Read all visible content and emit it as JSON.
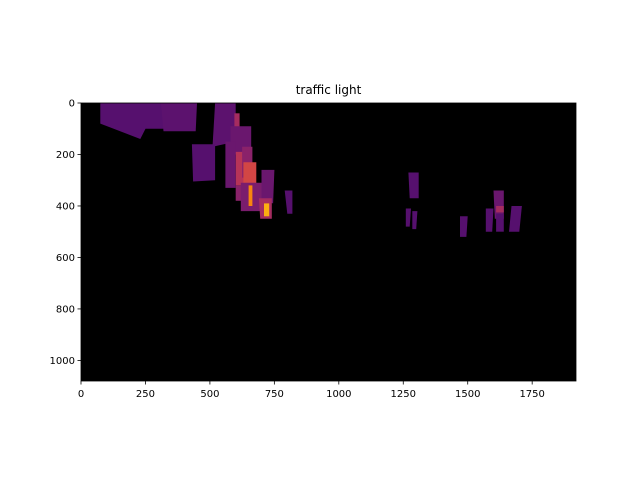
{
  "chart_data": {
    "type": "heatmap",
    "title": "traffic light",
    "xlabel": "",
    "ylabel": "",
    "xlim": [
      0,
      1920
    ],
    "ylim": [
      1080,
      0
    ],
    "x_ticks": [
      0,
      250,
      500,
      750,
      1000,
      1250,
      1500,
      1750
    ],
    "y_ticks": [
      0,
      200,
      400,
      600,
      800,
      1000
    ],
    "colormap": "inferno",
    "background_color": "#000000",
    "grid": false,
    "regions": [
      {
        "points": [
          [
            75,
            0
          ],
          [
            330,
            0
          ],
          [
            330,
            100
          ],
          [
            250,
            100
          ],
          [
            230,
            140
          ],
          [
            75,
            80
          ]
        ],
        "color": "#56106e"
      },
      {
        "points": [
          [
            310,
            0
          ],
          [
            450,
            0
          ],
          [
            445,
            110
          ],
          [
            320,
            110
          ]
        ],
        "color": "#5c126e"
      },
      {
        "points": [
          [
            520,
            0
          ],
          [
            600,
            0
          ],
          [
            600,
            150
          ],
          [
            510,
            170
          ]
        ],
        "color": "#5c126e"
      },
      {
        "points": [
          [
            595,
            40
          ],
          [
            615,
            40
          ],
          [
            615,
            105
          ],
          [
            595,
            105
          ]
        ],
        "color": "#a52c60"
      },
      {
        "points": [
          [
            580,
            90
          ],
          [
            660,
            90
          ],
          [
            660,
            200
          ],
          [
            580,
            200
          ]
        ],
        "color": "#6a176e"
      },
      {
        "points": [
          [
            600,
            190
          ],
          [
            640,
            190
          ],
          [
            640,
            320
          ],
          [
            600,
            320
          ]
        ],
        "color": "#b63458"
      },
      {
        "points": [
          [
            625,
            170
          ],
          [
            665,
            170
          ],
          [
            665,
            290
          ],
          [
            625,
            290
          ]
        ],
        "color": "#8a226a"
      },
      {
        "points": [
          [
            430,
            160
          ],
          [
            520,
            160
          ],
          [
            520,
            300
          ],
          [
            435,
            305
          ]
        ],
        "color": "#56106e"
      },
      {
        "points": [
          [
            560,
            150
          ],
          [
            600,
            150
          ],
          [
            600,
            330
          ],
          [
            560,
            330
          ]
        ],
        "color": "#6a176e"
      },
      {
        "points": [
          [
            630,
            230
          ],
          [
            680,
            230
          ],
          [
            680,
            320
          ],
          [
            630,
            320
          ]
        ],
        "color": "#d24644"
      },
      {
        "points": [
          [
            600,
            320
          ],
          [
            640,
            320
          ],
          [
            640,
            380
          ],
          [
            600,
            380
          ]
        ],
        "color": "#8a226a"
      },
      {
        "points": [
          [
            620,
            310
          ],
          [
            700,
            310
          ],
          [
            700,
            420
          ],
          [
            620,
            420
          ]
        ],
        "color": "#7a1d6d"
      },
      {
        "points": [
          [
            650,
            320
          ],
          [
            665,
            320
          ],
          [
            665,
            400
          ],
          [
            650,
            400
          ]
        ],
        "color": "#f8850f"
      },
      {
        "points": [
          [
            700,
            260
          ],
          [
            750,
            260
          ],
          [
            745,
            390
          ],
          [
            700,
            380
          ]
        ],
        "color": "#6a176e"
      },
      {
        "points": [
          [
            690,
            370
          ],
          [
            740,
            370
          ],
          [
            740,
            450
          ],
          [
            695,
            450
          ]
        ],
        "color": "#a52c60"
      },
      {
        "points": [
          [
            710,
            390
          ],
          [
            730,
            390
          ],
          [
            730,
            440
          ],
          [
            710,
            440
          ]
        ],
        "color": "#fcae12"
      },
      {
        "points": [
          [
            790,
            340
          ],
          [
            820,
            340
          ],
          [
            820,
            430
          ],
          [
            800,
            430
          ]
        ],
        "color": "#56106e"
      },
      {
        "points": [
          [
            1270,
            270
          ],
          [
            1310,
            270
          ],
          [
            1310,
            370
          ],
          [
            1275,
            370
          ]
        ],
        "color": "#56106e"
      },
      {
        "points": [
          [
            1260,
            410
          ],
          [
            1280,
            410
          ],
          [
            1275,
            480
          ],
          [
            1260,
            480
          ]
        ],
        "color": "#56106e"
      },
      {
        "points": [
          [
            1285,
            420
          ],
          [
            1305,
            420
          ],
          [
            1300,
            490
          ],
          [
            1285,
            490
          ]
        ],
        "color": "#56106e"
      },
      {
        "points": [
          [
            1470,
            440
          ],
          [
            1500,
            440
          ],
          [
            1495,
            520
          ],
          [
            1470,
            520
          ]
        ],
        "color": "#56106e"
      },
      {
        "points": [
          [
            1570,
            410
          ],
          [
            1600,
            410
          ],
          [
            1595,
            500
          ],
          [
            1570,
            500
          ]
        ],
        "color": "#56106e"
      },
      {
        "points": [
          [
            1600,
            340
          ],
          [
            1640,
            340
          ],
          [
            1640,
            450
          ],
          [
            1605,
            450
          ]
        ],
        "color": "#6a176e"
      },
      {
        "points": [
          [
            1610,
            400
          ],
          [
            1640,
            400
          ],
          [
            1640,
            425
          ],
          [
            1610,
            425
          ]
        ],
        "color": "#a52c60"
      },
      {
        "points": [
          [
            1610,
            430
          ],
          [
            1640,
            430
          ],
          [
            1640,
            500
          ],
          [
            1610,
            500
          ]
        ],
        "color": "#56106e"
      },
      {
        "points": [
          [
            1670,
            400
          ],
          [
            1710,
            400
          ],
          [
            1700,
            500
          ],
          [
            1660,
            500
          ]
        ],
        "color": "#56106e"
      }
    ]
  }
}
